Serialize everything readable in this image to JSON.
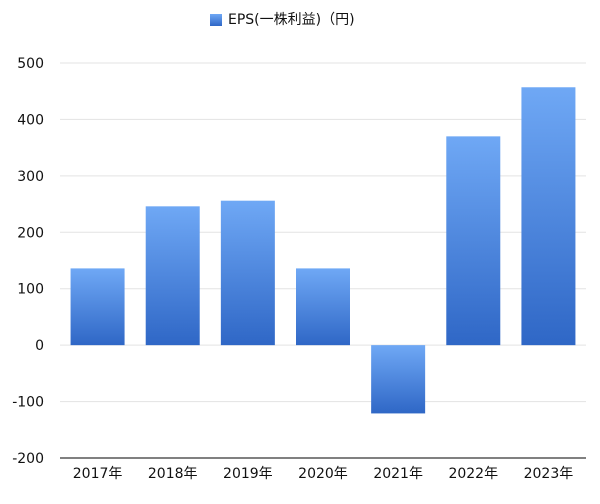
{
  "chart_data": {
    "type": "bar",
    "categories": [
      "2017年",
      "2018年",
      "2019年",
      "2020年",
      "2021年",
      "2022年",
      "2023年"
    ],
    "series": [
      {
        "name": "EPS(一株利益)（円)",
        "values": [
          136,
          246,
          256,
          136,
          -121,
          370,
          457
        ]
      }
    ],
    "ylim": [
      -200,
      500
    ],
    "yticks": [
      -200,
      -100,
      0,
      100,
      200,
      300,
      400,
      500
    ],
    "grid": true,
    "legend": "top-center"
  },
  "colors": {
    "bar_top": "#6fa8f5",
    "bar_bottom": "#2f67c6",
    "grid": "#e3e3e3",
    "axis": "#000000",
    "text": "#111111"
  }
}
